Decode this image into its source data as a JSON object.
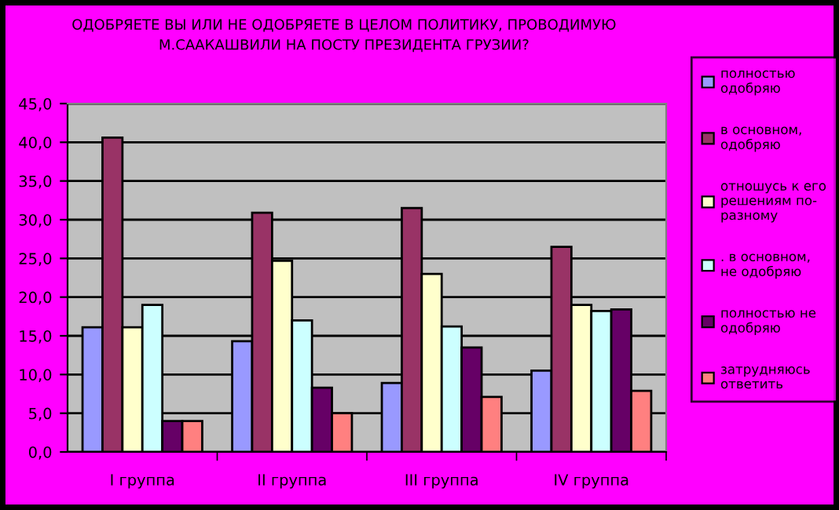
{
  "chart_data": {
    "type": "bar",
    "title": "ОДОБРЯЕТЕ ВЫ ИЛИ НЕ ОДОБРЯЕТЕ В ЦЕЛОМ ПОЛИТИКУ, ПРОВОДИМУЮ\nМ.СААКАШВИЛИ НА ПОСТУ ПРЕЗИДЕНТА ГРУЗИИ?",
    "categories": [
      "I группа",
      "II группа",
      "III группа",
      "IV группа"
    ],
    "series": [
      {
        "name": "полностью\nодобряю",
        "color": "#9999ff",
        "values": [
          16.1,
          14.3,
          8.9,
          10.5
        ]
      },
      {
        "name": "в основном,\nодобряю",
        "color": "#993366",
        "values": [
          40.6,
          30.9,
          31.5,
          26.5
        ]
      },
      {
        "name": "отношусь к его\nрешениям по-\nразному",
        "color": "#ffffcc",
        "values": [
          16.1,
          24.7,
          23.0,
          19.0
        ]
      },
      {
        "name": ". в основном,\nне одобряю",
        "color": "#ccffff",
        "values": [
          19.0,
          17.0,
          16.2,
          18.2
        ]
      },
      {
        "name": "полностью не\nодобряю",
        "color": "#660066",
        "values": [
          4.0,
          8.3,
          13.5,
          18.4
        ]
      },
      {
        "name": "затрудняюсь\nответить",
        "color": "#ff8080",
        "values": [
          4.0,
          5.0,
          7.1,
          7.9
        ]
      }
    ],
    "ylim": [
      0,
      45
    ],
    "yticks": [
      {
        "value": 0,
        "label": "0,0"
      },
      {
        "value": 5,
        "label": "5,0"
      },
      {
        "value": 10,
        "label": "10,0"
      },
      {
        "value": 15,
        "label": "15,0"
      },
      {
        "value": 20,
        "label": "20,0"
      },
      {
        "value": 25,
        "label": "25,0"
      },
      {
        "value": 30,
        "label": "30,0"
      },
      {
        "value": 35,
        "label": "35,0"
      },
      {
        "value": 40,
        "label": "40,0"
      },
      {
        "value": 45,
        "label": "45,0"
      }
    ],
    "grid": "y",
    "legend": "right"
  }
}
